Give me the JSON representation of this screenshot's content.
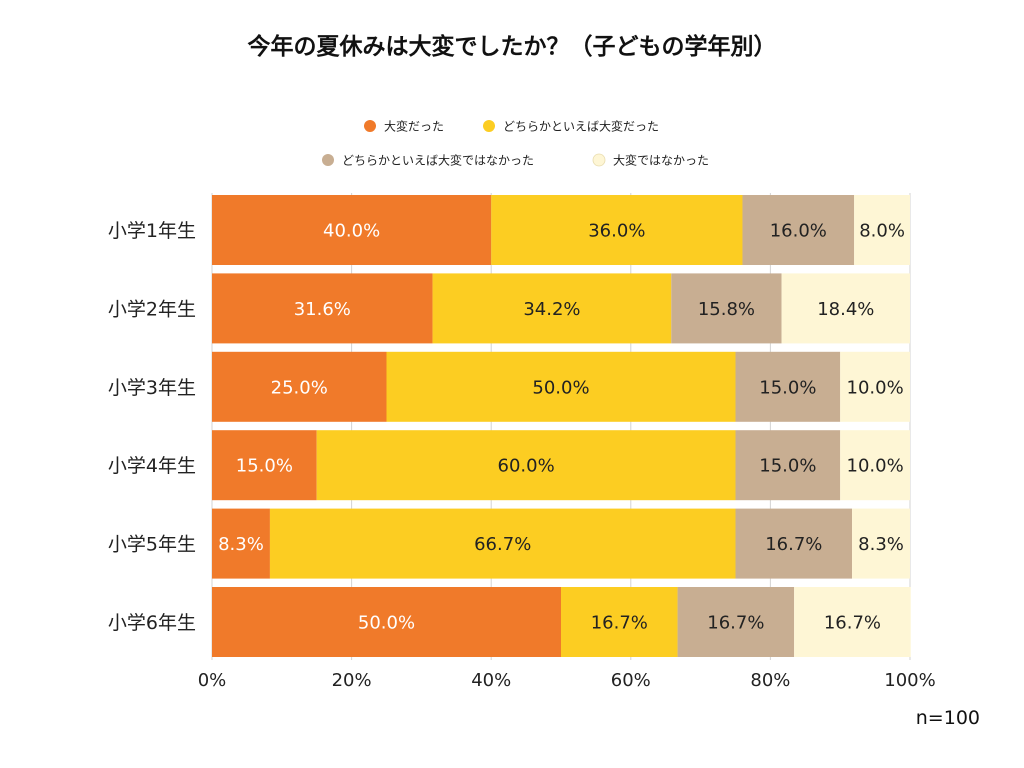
{
  "chart_data": {
    "type": "bar",
    "orientation": "horizontal",
    "stacked": true,
    "percent": true,
    "title": "今年の夏休みは大変でしたか？（子どもの学年別）",
    "categories": [
      "小学1年生",
      "小学2年生",
      "小学3年生",
      "小学4年生",
      "小学5年生",
      "小学6年生"
    ],
    "series": [
      {
        "name": "大変だった",
        "color": "#F07A2A",
        "label_color": "#ffffff",
        "values": [
          40.0,
          31.6,
          25.0,
          15.0,
          8.3,
          50.0
        ],
        "labels": [
          "40.0%",
          "31.6%",
          "25.0%",
          "15.0%",
          "8.3%",
          "50.0%"
        ]
      },
      {
        "name": "どちらかといえば大変だった",
        "color": "#FCCD22",
        "label_color": "#222222",
        "values": [
          36.0,
          34.2,
          50.0,
          60.0,
          66.7,
          16.7
        ],
        "labels": [
          "36.0%",
          "34.2%",
          "50.0%",
          "60.0%",
          "66.7%",
          "16.7%"
        ]
      },
      {
        "name": "どちらかといえば大変ではなかった",
        "color": "#C8AE92",
        "label_color": "#222222",
        "values": [
          16.0,
          15.8,
          15.0,
          15.0,
          16.7,
          16.7
        ],
        "labels": [
          "16.0%",
          "15.8%",
          "15.0%",
          "15.0%",
          "16.7%",
          "16.7%"
        ]
      },
      {
        "name": "大変ではなかった",
        "color": "#FEF6D5",
        "label_color": "#222222",
        "values": [
          8.0,
          18.4,
          10.0,
          10.0,
          8.3,
          16.7
        ],
        "labels": [
          "8.0%",
          "18.4%",
          "10.0%",
          "10.0%",
          "8.3%",
          "16.7%"
        ]
      }
    ],
    "xaxis": {
      "ticks": [
        0,
        20,
        40,
        60,
        80,
        100
      ],
      "tick_labels": [
        "0%",
        "20%",
        "40%",
        "60%",
        "80%",
        "100%"
      ],
      "range": [
        0,
        100
      ]
    },
    "grid": true,
    "legend_position": "top-center",
    "annotation": "n=100"
  }
}
